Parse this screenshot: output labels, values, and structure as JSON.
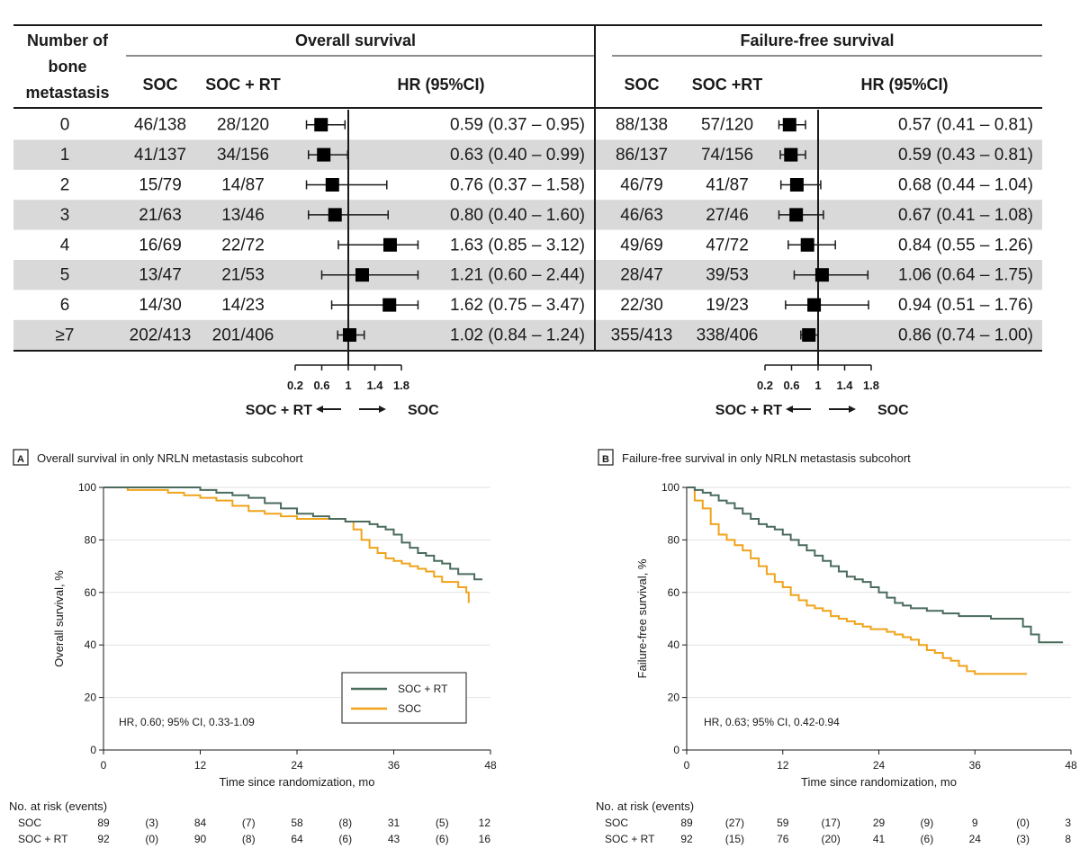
{
  "table": {
    "header": {
      "number_col": [
        "Number of",
        "bone",
        "metastasis"
      ],
      "os_title": "Overall survival",
      "ffs_title": "Failure-free survival",
      "os_soc": "SOC",
      "os_socrt": "SOC + RT",
      "os_hr": "HR (95%CI)",
      "ffs_soc": "SOC",
      "ffs_socrt": "SOC +RT",
      "ffs_hr": "HR (95%CI)"
    },
    "rows": [
      {
        "n": "0",
        "os_soc": "46/138",
        "os_socrt": "28/120",
        "os_hr_text": "0.59 (0.37 – 0.95)",
        "ffs_soc": "88/138",
        "ffs_socrt": "57/120",
        "ffs_hr_text": "0.57 (0.41 – 0.81)"
      },
      {
        "n": "1",
        "os_soc": "41/137",
        "os_socrt": "34/156",
        "os_hr_text": "0.63 (0.40 – 0.99)",
        "ffs_soc": "86/137",
        "ffs_socrt": "74/156",
        "ffs_hr_text": "0.59 (0.43 – 0.81)"
      },
      {
        "n": "2",
        "os_soc": "15/79",
        "os_socrt": "14/87",
        "os_hr_text": "0.76 (0.37 – 1.58)",
        "ffs_soc": "46/79",
        "ffs_socrt": "41/87",
        "ffs_hr_text": "0.68 (0.44 – 1.04)"
      },
      {
        "n": "3",
        "os_soc": "21/63",
        "os_socrt": "13/46",
        "os_hr_text": "0.80 (0.40 – 1.60)",
        "ffs_soc": "46/63",
        "ffs_socrt": "27/46",
        "ffs_hr_text": "0.67 (0.41 – 1.08)"
      },
      {
        "n": "4",
        "os_soc": "16/69",
        "os_socrt": "22/72",
        "os_hr_text": "1.63 (0.85 – 3.12)",
        "ffs_soc": "49/69",
        "ffs_socrt": "47/72",
        "ffs_hr_text": "0.84 (0.55 – 1.26)"
      },
      {
        "n": "5",
        "os_soc": "13/47",
        "os_socrt": "21/53",
        "os_hr_text": "1.21 (0.60 – 2.44)",
        "ffs_soc": "28/47",
        "ffs_socrt": "39/53",
        "ffs_hr_text": "1.06 (0.64 – 1.75)"
      },
      {
        "n": "6",
        "os_soc": "14/30",
        "os_socrt": "14/23",
        "os_hr_text": "1.62 (0.75 – 3.47)",
        "ffs_soc": "22/30",
        "ffs_socrt": "19/23",
        "ffs_hr_text": "0.94 (0.51 – 1.76)"
      },
      {
        "n": "≥7",
        "os_soc": "202/413",
        "os_socrt": "201/406",
        "os_hr_text": "1.02 (0.84 – 1.24)",
        "ffs_soc": "355/413",
        "ffs_socrt": "338/406",
        "ffs_hr_text": "0.86 (0.74 – 1.00)"
      }
    ],
    "axis_ticks": [
      "0.2",
      "0.6",
      "1",
      "1.4",
      "1.8"
    ],
    "favors_left": "SOC + RT",
    "favors_right": "SOC"
  },
  "colors": {
    "stripe": "#d9d9d9",
    "soc_rt": "#4a6b5c",
    "soc": "#f0a31b",
    "grid": "#e2e2e2",
    "ink": "#1a1a1a"
  },
  "chart_data": [
    {
      "type": "forest",
      "title": "Overall survival",
      "categories": [
        "0",
        "1",
        "2",
        "3",
        "4",
        "5",
        "6",
        "≥7"
      ],
      "hr": [
        0.59,
        0.63,
        0.76,
        0.8,
        1.63,
        1.21,
        1.62,
        1.02
      ],
      "ci_low": [
        0.37,
        0.4,
        0.37,
        0.4,
        0.85,
        0.6,
        0.75,
        0.84
      ],
      "ci_high": [
        0.95,
        0.99,
        1.58,
        1.6,
        3.12,
        2.44,
        3.47,
        1.24
      ],
      "xlim": [
        0.2,
        1.8
      ],
      "xticks": [
        0.2,
        0.6,
        1,
        1.4,
        1.8
      ]
    },
    {
      "type": "forest",
      "title": "Failure-free survival",
      "categories": [
        "0",
        "1",
        "2",
        "3",
        "4",
        "5",
        "6",
        "≥7"
      ],
      "hr": [
        0.57,
        0.59,
        0.68,
        0.67,
        0.84,
        1.06,
        0.94,
        0.86
      ],
      "ci_low": [
        0.41,
        0.43,
        0.44,
        0.41,
        0.55,
        0.64,
        0.51,
        0.74
      ],
      "ci_high": [
        0.81,
        0.81,
        1.04,
        1.08,
        1.26,
        1.75,
        1.76,
        1.0
      ],
      "xlim": [
        0.2,
        1.8
      ],
      "xticks": [
        0.2,
        0.6,
        1,
        1.4,
        1.8
      ]
    },
    {
      "type": "line",
      "panel": "A",
      "title": "Overall survival in only NRLN metastasis subcohort",
      "xlabel": "Time since randomization, mo",
      "ylabel": "Overall survival, %",
      "xlim": [
        0,
        48
      ],
      "ylim": [
        0,
        100
      ],
      "xticks": [
        0,
        12,
        24,
        36,
        48
      ],
      "yticks": [
        0,
        20,
        40,
        60,
        80,
        100
      ],
      "annotation": "HR, 0.60; 95% CI, 0.33-1.09",
      "legend": [
        "SOC + RT",
        "SOC"
      ],
      "series": [
        {
          "name": "SOC + RT",
          "x": [
            0,
            3,
            8,
            12,
            14,
            16,
            18,
            20,
            22,
            24,
            26,
            28,
            30,
            31,
            32,
            33,
            34,
            35,
            36,
            37,
            38,
            39,
            40,
            41,
            42,
            43,
            44,
            45,
            46,
            47
          ],
          "y": [
            100,
            100,
            100,
            99,
            98,
            97,
            96,
            94,
            92,
            90,
            89,
            88,
            87,
            87,
            87,
            86,
            85,
            84,
            82,
            79,
            77,
            75,
            74,
            72,
            71,
            69,
            67,
            67,
            65,
            65
          ]
        },
        {
          "name": "SOC",
          "x": [
            0,
            3,
            6,
            8,
            10,
            12,
            14,
            16,
            18,
            20,
            22,
            24,
            26,
            28,
            30,
            31,
            32,
            33,
            34,
            35,
            36,
            37,
            38,
            39,
            40,
            41,
            42,
            43,
            44,
            45,
            45.3
          ],
          "y": [
            100,
            99,
            99,
            98,
            97,
            96,
            95,
            93,
            91,
            90,
            89,
            88,
            88,
            88,
            87,
            84,
            80,
            77,
            75,
            73,
            72,
            71,
            70,
            69,
            68,
            66,
            64,
            64,
            62,
            60,
            56
          ]
        }
      ],
      "risk_table": {
        "header": "No. at risk (events)",
        "rows": [
          {
            "label": "SOC",
            "values": [
              "89",
              "(3)",
              "84",
              "(7)",
              "58",
              "(8)",
              "31",
              "(5)",
              "12"
            ]
          },
          {
            "label": "SOC + RT",
            "values": [
              "92",
              "(0)",
              "90",
              "(8)",
              "64",
              "(6)",
              "43",
              "(6)",
              "16"
            ]
          }
        ]
      }
    },
    {
      "type": "line",
      "panel": "B",
      "title": "Failure-free survival in only NRLN metastasis subcohort",
      "xlabel": "Time since randomization, mo",
      "ylabel": "Failure-free survival, %",
      "xlim": [
        0,
        48
      ],
      "ylim": [
        0,
        100
      ],
      "xticks": [
        0,
        12,
        24,
        36,
        48
      ],
      "yticks": [
        0,
        20,
        40,
        60,
        80,
        100
      ],
      "annotation": "HR, 0.63; 95% CI, 0.42-0.94",
      "series": [
        {
          "name": "SOC + RT",
          "x": [
            0,
            1,
            2,
            3,
            4,
            5,
            6,
            7,
            8,
            9,
            10,
            11,
            12,
            13,
            14,
            15,
            16,
            17,
            18,
            19,
            20,
            21,
            22,
            23,
            24,
            25,
            26,
            27,
            28,
            30,
            32,
            34,
            36,
            38,
            40,
            41,
            42,
            43,
            44,
            46,
            47
          ],
          "y": [
            100,
            99,
            98,
            97,
            95,
            94,
            92,
            90,
            88,
            86,
            85,
            84,
            82,
            80,
            78,
            76,
            74,
            72,
            70,
            68,
            66,
            65,
            64,
            62,
            60,
            58,
            56,
            55,
            54,
            53,
            52,
            51,
            51,
            50,
            50,
            50,
            47,
            44,
            41,
            41,
            41
          ]
        },
        {
          "name": "SOC",
          "x": [
            0,
            1,
            2,
            3,
            4,
            5,
            6,
            7,
            8,
            9,
            10,
            11,
            12,
            13,
            14,
            15,
            16,
            17,
            18,
            19,
            20,
            21,
            22,
            23,
            24,
            25,
            26,
            27,
            28,
            29,
            30,
            31,
            32,
            33,
            34,
            35,
            36,
            38,
            40,
            42,
            42.5
          ],
          "y": [
            100,
            95,
            92,
            86,
            82,
            80,
            78,
            76,
            73,
            70,
            67,
            64,
            62,
            59,
            57,
            55,
            54,
            53,
            51,
            50,
            49,
            48,
            47,
            46,
            46,
            45,
            44,
            43,
            42,
            40,
            38,
            37,
            35,
            34,
            32,
            30,
            29,
            29,
            29,
            29,
            29
          ]
        }
      ],
      "risk_table": {
        "header": "No. at risk (events)",
        "rows": [
          {
            "label": "SOC",
            "values": [
              "89",
              "(27)",
              "59",
              "(17)",
              "29",
              "(9)",
              "9",
              "(0)",
              "3"
            ]
          },
          {
            "label": "SOC + RT",
            "values": [
              "92",
              "(15)",
              "76",
              "(20)",
              "41",
              "(6)",
              "24",
              "(3)",
              "8"
            ]
          }
        ]
      }
    }
  ]
}
